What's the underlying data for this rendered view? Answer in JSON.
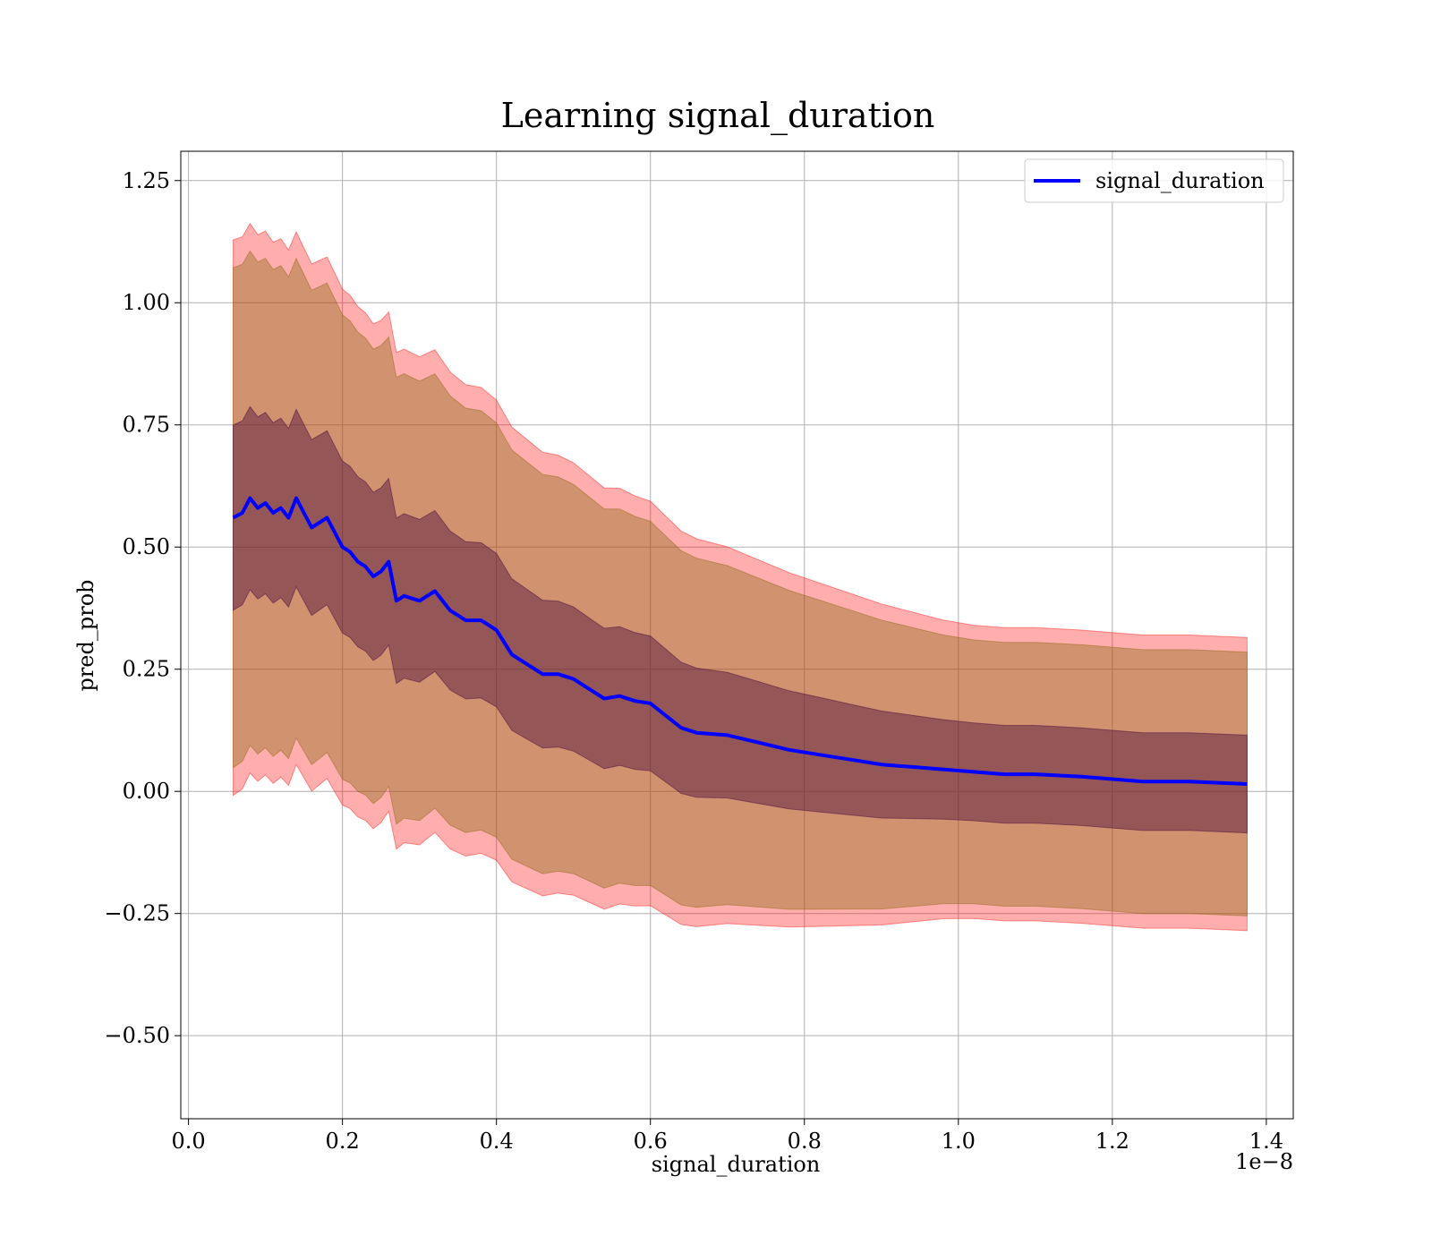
{
  "chart_data": {
    "type": "area",
    "title": "Learning signal_duration",
    "xlabel": "signal_duration",
    "ylabel": "pred_prob",
    "x_offset_text": "1e−8",
    "xlim": [
      -0.01,
      1.435
    ],
    "ylim": [
      -0.67,
      1.31
    ],
    "grid": true,
    "legend_position": "upper-right",
    "x_ticks": [
      0.0,
      0.2,
      0.4,
      0.6,
      0.8,
      1.0,
      1.2,
      1.4
    ],
    "x_tick_labels": [
      "0.0",
      "0.2",
      "0.4",
      "0.6",
      "0.8",
      "1.0",
      "1.2",
      "1.4"
    ],
    "y_ticks": [
      1.25,
      1.0,
      0.75,
      0.5,
      0.25,
      0.0,
      -0.25,
      -0.5
    ],
    "y_tick_labels": [
      "1.25",
      "1.00",
      "0.75",
      "0.50",
      "0.25",
      "0.00",
      "−0.25",
      "−0.50"
    ],
    "colors": {
      "line": "#0000ff",
      "band_outer": "#ff0000",
      "band_middle": "#8b6914",
      "band_inner": "#4b0e3c",
      "grid": "#b0b0b0"
    },
    "x": [
      0.058,
      0.07,
      0.08,
      0.09,
      0.1,
      0.11,
      0.12,
      0.13,
      0.14,
      0.15,
      0.16,
      0.17,
      0.18,
      0.19,
      0.2,
      0.21,
      0.22,
      0.23,
      0.24,
      0.25,
      0.26,
      0.27,
      0.28,
      0.3,
      0.32,
      0.34,
      0.36,
      0.38,
      0.4,
      0.42,
      0.44,
      0.46,
      0.48,
      0.5,
      0.52,
      0.54,
      0.56,
      0.58,
      0.6,
      0.62,
      0.64,
      0.66,
      0.7,
      0.74,
      0.78,
      0.82,
      0.86,
      0.9,
      0.94,
      0.98,
      1.02,
      1.06,
      1.1,
      1.16,
      1.24,
      1.3,
      1.375
    ],
    "series": [
      {
        "name": "signal_duration",
        "values": [
          0.56,
          0.57,
          0.6,
          0.58,
          0.59,
          0.57,
          0.58,
          0.56,
          0.6,
          0.57,
          0.54,
          0.55,
          0.56,
          0.53,
          0.5,
          0.49,
          0.47,
          0.46,
          0.44,
          0.45,
          0.47,
          0.39,
          0.4,
          0.39,
          0.41,
          0.37,
          0.35,
          0.35,
          0.33,
          0.28,
          0.26,
          0.24,
          0.24,
          0.23,
          0.21,
          0.19,
          0.195,
          0.185,
          0.18,
          0.155,
          0.13,
          0.12,
          0.115,
          0.1,
          0.085,
          0.075,
          0.065,
          0.055,
          0.05,
          0.045,
          0.04,
          0.035,
          0.035,
          0.03,
          0.02,
          0.02,
          0.015
        ]
      }
    ]
  }
}
